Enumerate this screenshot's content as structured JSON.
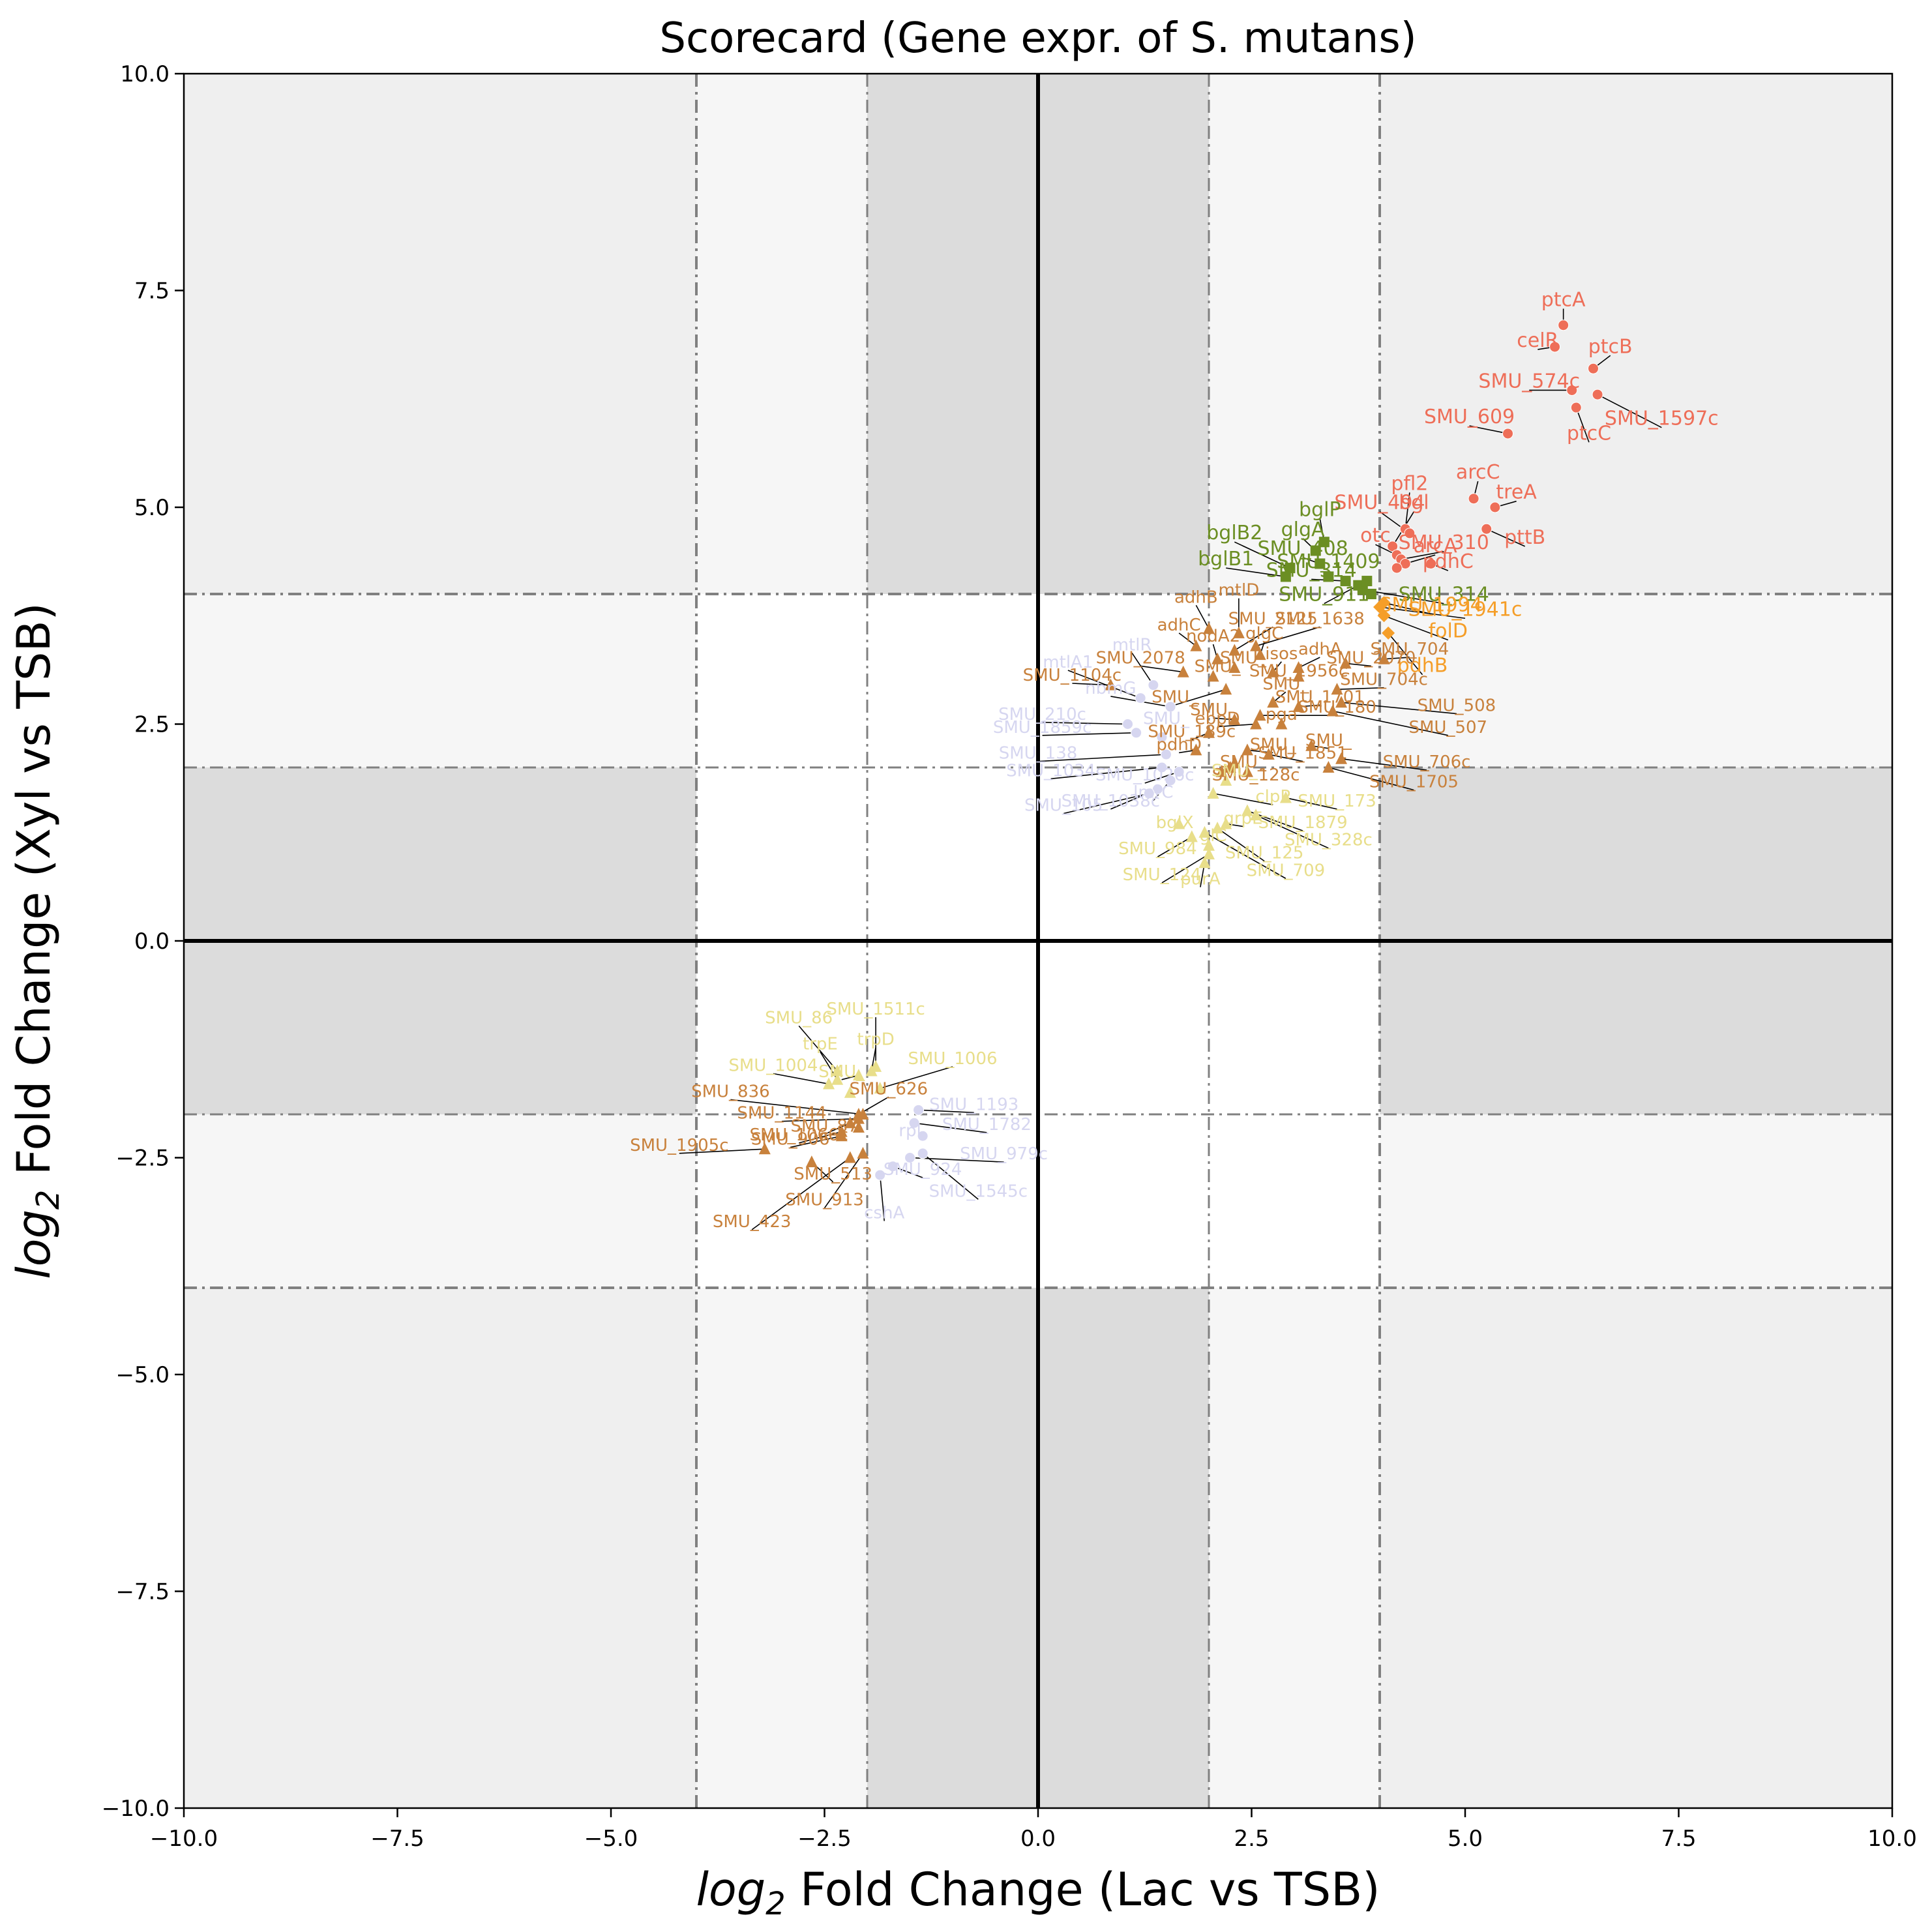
{
  "chart_data": {
    "type": "scatter",
    "title": "Scorecard (Gene expr. of S. mutans)",
    "xlabel": {
      "base": "log",
      "sub": "2",
      "rest": " Fold Change (Lac vs TSB)"
    },
    "ylabel": {
      "base": "log",
      "sub": "2",
      "rest": " Fold Change (Xyl vs TSB)"
    },
    "xlim": [
      -10,
      10
    ],
    "ylim": [
      -10,
      10
    ],
    "xticks": [
      "−10.0",
      "−7.5",
      "−5.0",
      "−2.5",
      "0.0",
      "2.5",
      "5.0",
      "7.5",
      "10.0"
    ],
    "yticks": [
      "−10.0",
      "−7.5",
      "−5.0",
      "−2.5",
      "0.0",
      "2.5",
      "5.0",
      "7.5",
      "10.0"
    ],
    "thresholds": [
      -4,
      -2,
      2,
      4
    ],
    "colors": {
      "red": "#ee6e58",
      "green": "#6b8e23",
      "orange": "#f59e28",
      "brown": "#c8813c",
      "yellow": "#e8de8a",
      "lavender": "#d6d6f0",
      "zone_dark": "#dcdcdc",
      "zone_mid": "#efefef",
      "zone_light": "#f6f6f6"
    },
    "series": [
      {
        "color": "red",
        "marker": "circle",
        "points": [
          {
            "x": 6.15,
            "y": 7.1,
            "label": "ptcA",
            "lx": 6.15,
            "ly": 7.32
          },
          {
            "x": 6.05,
            "y": 6.85,
            "label": "celR",
            "lx": 5.85,
            "ly": 6.85
          },
          {
            "x": 6.5,
            "y": 6.6,
            "label": "ptcB",
            "lx": 6.7,
            "ly": 6.78
          },
          {
            "x": 6.25,
            "y": 6.35,
            "label": "SMU_574c",
            "lx": 5.75,
            "ly": 6.38
          },
          {
            "x": 6.55,
            "y": 6.3,
            "label": "SMU_1597c",
            "lx": 7.3,
            "ly": 5.95
          },
          {
            "x": 6.3,
            "y": 6.15,
            "label": "ptcC",
            "lx": 6.45,
            "ly": 5.78
          },
          {
            "x": 5.5,
            "y": 5.85,
            "label": "SMU_609",
            "lx": 5.05,
            "ly": 5.97
          },
          {
            "x": 5.1,
            "y": 5.1,
            "label": "arcC",
            "lx": 5.15,
            "ly": 5.33
          },
          {
            "x": 5.35,
            "y": 5.0,
            "label": "treA",
            "lx": 5.6,
            "ly": 5.1
          },
          {
            "x": 4.3,
            "y": 4.75,
            "label": "pfl2",
            "lx": 4.35,
            "ly": 5.2
          },
          {
            "x": 4.35,
            "y": 4.7,
            "label": "SMU_494",
            "lx": 4.0,
            "ly": 4.98
          },
          {
            "x": 4.15,
            "y": 4.55,
            "label": "bgl",
            "lx": 4.4,
            "ly": 4.98
          },
          {
            "x": 4.2,
            "y": 4.45,
            "label": "otc",
            "lx": 3.95,
            "ly": 4.6
          },
          {
            "x": 4.25,
            "y": 4.4,
            "label": "SMU_310",
            "lx": 4.75,
            "ly": 4.52
          },
          {
            "x": 4.3,
            "y": 4.35,
            "label": "arcA",
            "lx": 4.65,
            "ly": 4.48
          },
          {
            "x": 5.25,
            "y": 4.75,
            "label": "pttB",
            "lx": 5.7,
            "ly": 4.58
          },
          {
            "x": 4.6,
            "y": 4.35,
            "label": "pdhC",
            "lx": 4.8,
            "ly": 4.3
          },
          {
            "x": 4.2,
            "y": 4.3,
            "label": "",
            "lx": 4.2,
            "ly": 4.3
          }
        ]
      },
      {
        "color": "green",
        "marker": "square",
        "points": [
          {
            "x": 3.35,
            "y": 4.6,
            "label": "bglP",
            "lx": 3.3,
            "ly": 4.9
          },
          {
            "x": 3.25,
            "y": 4.5,
            "label": "glgA",
            "lx": 3.1,
            "ly": 4.67
          },
          {
            "x": 2.95,
            "y": 4.3,
            "label": "bglB2",
            "lx": 2.3,
            "ly": 4.63
          },
          {
            "x": 3.3,
            "y": 4.35,
            "label": "SMU_408",
            "lx": 3.1,
            "ly": 4.45
          },
          {
            "x": 2.9,
            "y": 4.2,
            "label": "bglB1",
            "lx": 2.2,
            "ly": 4.33
          },
          {
            "x": 3.4,
            "y": 4.2,
            "label": "SMU_1409",
            "lx": 3.4,
            "ly": 4.3
          },
          {
            "x": 3.6,
            "y": 4.15,
            "label": "SMU_314",
            "lx": 3.2,
            "ly": 4.2
          },
          {
            "x": 3.75,
            "y": 4.1,
            "label": "SMU_911",
            "lx": 3.35,
            "ly": 3.92
          },
          {
            "x": 3.8,
            "y": 4.05,
            "label": "SMU_314",
            "lx": 4.75,
            "ly": 3.92
          },
          {
            "x": 3.85,
            "y": 4.15,
            "label": "",
            "lx": 3.85,
            "ly": 4.15
          },
          {
            "x": 3.9,
            "y": 4.0,
            "label": "",
            "lx": 3.9,
            "ly": 4.0
          }
        ]
      },
      {
        "color": "orange",
        "marker": "diamond",
        "points": [
          {
            "x": 4.0,
            "y": 3.85,
            "label": "SMU_1941c",
            "lx": 5.0,
            "ly": 3.75
          },
          {
            "x": 4.05,
            "y": 3.75,
            "label": "folD",
            "lx": 4.8,
            "ly": 3.5
          },
          {
            "x": 4.1,
            "y": 3.55,
            "label": "pdhB",
            "lx": 4.5,
            "ly": 3.1
          },
          {
            "x": 4.05,
            "y": 3.9,
            "label": "SMU_1994",
            "lx": 4.6,
            "ly": 3.8
          }
        ]
      },
      {
        "color": "brown",
        "marker": "triangle",
        "points": [
          {
            "x": 2.0,
            "y": 3.6,
            "label": "adhB",
            "lx": 1.85,
            "ly": 3.9
          },
          {
            "x": 2.35,
            "y": 3.55,
            "label": "mtlD",
            "lx": 2.35,
            "ly": 3.98
          },
          {
            "x": 1.85,
            "y": 3.4,
            "label": "adhC",
            "lx": 1.65,
            "ly": 3.58
          },
          {
            "x": 2.3,
            "y": 3.35,
            "label": "SMU_2125",
            "lx": 2.75,
            "ly": 3.65
          },
          {
            "x": 2.55,
            "y": 3.4,
            "label": "SMU_1638",
            "lx": 3.3,
            "ly": 3.65
          },
          {
            "x": 2.1,
            "y": 3.25,
            "label": "nodA2",
            "lx": 2.05,
            "ly": 3.45
          },
          {
            "x": 2.6,
            "y": 3.3,
            "label": "glgC",
            "lx": 2.65,
            "ly": 3.48
          },
          {
            "x": 1.7,
            "y": 3.1,
            "label": "SMU_2078",
            "lx": 1.2,
            "ly": 3.2
          },
          {
            "x": 2.3,
            "y": 3.15,
            "label": "SMU_",
            "lx": 2.4,
            "ly": 3.2
          },
          {
            "x": 2.75,
            "y": 3.1,
            "label": "isos",
            "lx": 2.85,
            "ly": 3.25
          },
          {
            "x": 3.05,
            "y": 3.15,
            "label": "adhA",
            "lx": 3.3,
            "ly": 3.3
          },
          {
            "x": 3.6,
            "y": 3.2,
            "label": "SMU_2070",
            "lx": 3.9,
            "ly": 3.2
          },
          {
            "x": 2.05,
            "y": 3.05,
            "label": "SMU_",
            "lx": 2.1,
            "ly": 3.1
          },
          {
            "x": 3.05,
            "y": 3.05,
            "label": "SMU_1956c",
            "lx": 3.05,
            "ly": 3.05
          },
          {
            "x": 4.05,
            "y": 3.25,
            "label": "SMU_704",
            "lx": 4.35,
            "ly": 3.3
          },
          {
            "x": 0.85,
            "y": 2.95,
            "label": "SMU_1104c",
            "lx": 0.4,
            "ly": 3.0
          },
          {
            "x": 2.2,
            "y": 2.9,
            "label": "SMU_",
            "lx": 1.6,
            "ly": 2.75
          },
          {
            "x": 3.5,
            "y": 2.9,
            "label": "SMU_704c",
            "lx": 4.05,
            "ly": 2.95
          },
          {
            "x": 3.55,
            "y": 2.75,
            "label": "SMU_508",
            "lx": 4.9,
            "ly": 2.65
          },
          {
            "x": 3.45,
            "y": 2.65,
            "label": "SMU_507",
            "lx": 4.8,
            "ly": 2.4
          },
          {
            "x": 2.75,
            "y": 2.75,
            "label": "SMU_",
            "lx": 2.9,
            "ly": 2.9
          },
          {
            "x": 3.05,
            "y": 2.7,
            "label": "SMU_1701",
            "lx": 3.3,
            "ly": 2.75
          },
          {
            "x": 2.6,
            "y": 2.6,
            "label": "SMU_180",
            "lx": 3.5,
            "ly": 2.63
          },
          {
            "x": 2.3,
            "y": 2.55,
            "label": "SMU_",
            "lx": 2.05,
            "ly": 2.6
          },
          {
            "x": 2.85,
            "y": 2.5,
            "label": "pga",
            "lx": 2.85,
            "ly": 2.55
          },
          {
            "x": 2.55,
            "y": 2.5,
            "label": "ebpD",
            "lx": 2.1,
            "ly": 2.5
          },
          {
            "x": 2.0,
            "y": 2.4,
            "label": "SMU_189c",
            "lx": 1.8,
            "ly": 2.35
          },
          {
            "x": 2.45,
            "y": 2.2,
            "label": "SMU_",
            "lx": 2.75,
            "ly": 2.2
          },
          {
            "x": 3.2,
            "y": 2.25,
            "label": "SMU_",
            "lx": 3.4,
            "ly": 2.25
          },
          {
            "x": 1.85,
            "y": 2.2,
            "label": "pdhD",
            "lx": 1.65,
            "ly": 2.2
          },
          {
            "x": 2.7,
            "y": 2.15,
            "label": "SMU_1851",
            "lx": 3.1,
            "ly": 2.1
          },
          {
            "x": 3.55,
            "y": 2.1,
            "label": "SMU_706c",
            "lx": 4.55,
            "ly": 2.0
          },
          {
            "x": 3.4,
            "y": 2.0,
            "label": "SMU_1705",
            "lx": 4.4,
            "ly": 1.77
          },
          {
            "x": 2.3,
            "y": 2.05,
            "label": "SMU_",
            "lx": 2.4,
            "ly": 2.0
          },
          {
            "x": 2.45,
            "y": 1.95,
            "label": "SMU_128c",
            "lx": 2.55,
            "ly": 1.85
          },
          {
            "x": 2.15,
            "y": 1.95,
            "label": "",
            "lx": 2.15,
            "ly": 1.95
          },
          {
            "x": 2.25,
            "y": 2.0,
            "label": "",
            "lx": 2.25,
            "ly": 2.0
          },
          {
            "x": -2.05,
            "y": -2.0,
            "label": "SMU_836",
            "lx": -3.6,
            "ly": -1.8
          },
          {
            "x": -2.1,
            "y": -2.05,
            "label": "SMU_1144",
            "lx": -3.0,
            "ly": -2.05
          },
          {
            "x": -2.2,
            "y": -2.1,
            "label": "SMU_87",
            "lx": -2.5,
            "ly": -2.2
          },
          {
            "x": -2.3,
            "y": -2.2,
            "label": "SMU_1066c",
            "lx": -2.8,
            "ly": -2.3
          },
          {
            "x": -3.2,
            "y": -2.4,
            "label": "SMU_1905c",
            "lx": -4.2,
            "ly": -2.42
          },
          {
            "x": -2.3,
            "y": -2.25,
            "label": "SMU_906",
            "lx": -2.9,
            "ly": -2.35
          },
          {
            "x": -2.1,
            "y": -2.0,
            "label": "SMU_626",
            "lx": -1.75,
            "ly": -1.77
          },
          {
            "x": -2.65,
            "y": -2.55,
            "label": "SMU_513",
            "lx": -2.4,
            "ly": -2.75
          },
          {
            "x": -2.05,
            "y": -2.45,
            "label": "SMU_913",
            "lx": -2.5,
            "ly": -3.05
          },
          {
            "x": -2.2,
            "y": -2.5,
            "label": "SMU_423",
            "lx": -3.35,
            "ly": -3.3
          },
          {
            "x": -2.1,
            "y": -2.15,
            "label": "",
            "lx": -2.1,
            "ly": -2.15
          }
        ]
      },
      {
        "color": "yellow",
        "marker": "triangle",
        "points": [
          {
            "x": 2.2,
            "y": 1.85,
            "label": "SMU_",
            "lx": 2.3,
            "ly": 1.9
          },
          {
            "x": 2.05,
            "y": 1.7,
            "label": "clpP",
            "lx": 2.75,
            "ly": 1.6
          },
          {
            "x": 2.9,
            "y": 1.65,
            "label": "SMU_173",
            "lx": 3.5,
            "ly": 1.55
          },
          {
            "x": 2.45,
            "y": 1.5,
            "label": "SMU_1879",
            "lx": 3.1,
            "ly": 1.3
          },
          {
            "x": 2.55,
            "y": 1.45,
            "label": "SMU_328c",
            "lx": 3.4,
            "ly": 1.1
          },
          {
            "x": 2.2,
            "y": 1.35,
            "label": "grpE",
            "lx": 2.4,
            "ly": 1.35
          },
          {
            "x": 2.1,
            "y": 1.3,
            "label": "SMU_125",
            "lx": 2.65,
            "ly": 0.95
          },
          {
            "x": 1.95,
            "y": 1.25,
            "label": "SMU_709",
            "lx": 2.9,
            "ly": 0.75
          },
          {
            "x": 1.8,
            "y": 1.2,
            "label": "SMU_984",
            "lx": 1.4,
            "ly": 1.0
          },
          {
            "x": 1.65,
            "y": 1.35,
            "label": "bglX",
            "lx": 1.6,
            "ly": 1.3
          },
          {
            "x": 2.0,
            "y": 1.1,
            "label": "glC",
            "lx": 2.05,
            "ly": 1.15
          },
          {
            "x": 2.0,
            "y": 1.0,
            "label": "SMU_124",
            "lx": 1.45,
            "ly": 0.7
          },
          {
            "x": 1.95,
            "y": 0.9,
            "label": "purA",
            "lx": 1.9,
            "ly": 0.65
          },
          {
            "x": -2.35,
            "y": -1.5,
            "label": "SMU_86",
            "lx": -2.8,
            "ly": -0.95
          },
          {
            "x": -1.9,
            "y": -1.45,
            "label": "SMU_1511c",
            "lx": -1.9,
            "ly": -0.85
          },
          {
            "x": -2.35,
            "y": -1.6,
            "label": "trpE",
            "lx": -2.55,
            "ly": -1.25
          },
          {
            "x": -1.95,
            "y": -1.5,
            "label": "trpD",
            "lx": -1.9,
            "ly": -1.2
          },
          {
            "x": -1.85,
            "y": -1.7,
            "label": "SMU_1006",
            "lx": -1.0,
            "ly": -1.42
          },
          {
            "x": -2.45,
            "y": -1.65,
            "label": "SMU_1004",
            "lx": -3.1,
            "ly": -1.5
          },
          {
            "x": -2.1,
            "y": -1.55,
            "label": "SMU_",
            "lx": -2.3,
            "ly": -1.57
          },
          {
            "x": -2.2,
            "y": -1.75,
            "label": "",
            "lx": -2.2,
            "ly": -1.75
          }
        ]
      },
      {
        "color": "lavender",
        "marker": "circle",
        "points": [
          {
            "x": 1.35,
            "y": 2.95,
            "label": "mtlR",
            "lx": 1.1,
            "ly": 3.35
          },
          {
            "x": 1.2,
            "y": 2.8,
            "label": "mtlA1",
            "lx": 0.35,
            "ly": 3.15
          },
          {
            "x": 1.55,
            "y": 2.7,
            "label": "nbmG",
            "lx": 0.85,
            "ly": 2.85
          },
          {
            "x": 1.05,
            "y": 2.5,
            "label": "SMU_210c",
            "lx": 0.05,
            "ly": 2.55
          },
          {
            "x": 1.15,
            "y": 2.4,
            "label": "SMU_1859c",
            "lx": 0.05,
            "ly": 2.4
          },
          {
            "x": 1.45,
            "y": 2.35,
            "label": "SMU_",
            "lx": 1.5,
            "ly": 2.5
          },
          {
            "x": 1.5,
            "y": 2.15,
            "label": "SMU_138",
            "lx": 0.0,
            "ly": 2.1
          },
          {
            "x": 1.45,
            "y": 2.0,
            "label": "SMU_1034",
            "lx": 0.15,
            "ly": 1.9
          },
          {
            "x": 1.65,
            "y": 1.95,
            "label": "SMU_1026c",
            "lx": 1.25,
            "ly": 1.85
          },
          {
            "x": 1.55,
            "y": 1.85,
            "label": "lmrC",
            "lx": 1.35,
            "ly": 1.65
          },
          {
            "x": 1.4,
            "y": 1.75,
            "label": "SMU_1038c",
            "lx": 0.85,
            "ly": 1.55
          },
          {
            "x": 1.3,
            "y": 1.7,
            "label": "SMU_105",
            "lx": 0.3,
            "ly": 1.5
          },
          {
            "x": -1.4,
            "y": -1.95,
            "label": "SMU_1193",
            "lx": -0.75,
            "ly": -1.95
          },
          {
            "x": -1.45,
            "y": -2.1,
            "label": "SMU_1782",
            "lx": -0.6,
            "ly": -2.18
          },
          {
            "x": -1.35,
            "y": -2.25,
            "label": "rpl",
            "lx": -1.5,
            "ly": -2.25
          },
          {
            "x": -1.5,
            "y": -2.5,
            "label": "SMU_979c",
            "lx": -0.4,
            "ly": -2.52
          },
          {
            "x": -1.7,
            "y": -2.6,
            "label": "SMU_924",
            "lx": -1.35,
            "ly": -2.7
          },
          {
            "x": -1.35,
            "y": -2.45,
            "label": "SMU_1545c",
            "lx": -0.7,
            "ly": -2.95
          },
          {
            "x": -1.85,
            "y": -2.7,
            "label": "cshA",
            "lx": -1.8,
            "ly": -3.2
          }
        ]
      }
    ]
  }
}
